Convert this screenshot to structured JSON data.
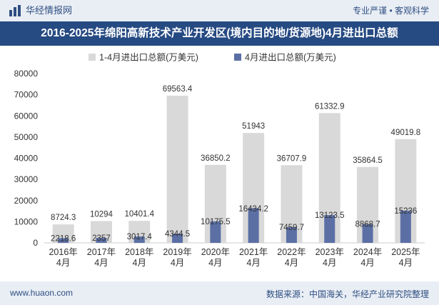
{
  "header": {
    "brand": "华经情报网",
    "tagline": "专业严谨 • 客观科学"
  },
  "title": "2016-2025年绵阳高新技术产业开发区(境内目的地/货源地)4月进出口总额",
  "footer": {
    "site": "www.huaon.com",
    "source": "数据来源：中国海关，华经产业研究院整理"
  },
  "colors": {
    "series1": "#d9d9d9",
    "series2": "#5b6fa5",
    "header_bg": "#264a82",
    "bar_bg": "#e9eef5"
  },
  "chart_data": {
    "type": "bar",
    "categories": [
      "2016年\n4月",
      "2017年\n4月",
      "2018年\n4月",
      "2019年\n4月",
      "2020年\n4月",
      "2021年\n4月",
      "2022年\n4月",
      "2023年\n4月",
      "2024年\n4月",
      "2025年\n4月"
    ],
    "series": [
      {
        "name": "1-4月进出口总额(万美元)",
        "values": [
          8724.3,
          10294,
          10401.4,
          69563.4,
          36850.2,
          51943,
          36707.9,
          61332.9,
          35864.5,
          49019.8
        ]
      },
      {
        "name": "4月进出口总额(万美元)",
        "values": [
          2218.6,
          2357,
          3017.4,
          4344.5,
          10175.5,
          16434.2,
          7459.7,
          13123.5,
          8868.7,
          15236
        ]
      }
    ],
    "ylim": [
      0,
      80000
    ],
    "yticks": [
      0,
      10000,
      20000,
      30000,
      40000,
      50000,
      60000,
      70000,
      80000
    ],
    "legend_position": "top-center",
    "grid": false
  }
}
